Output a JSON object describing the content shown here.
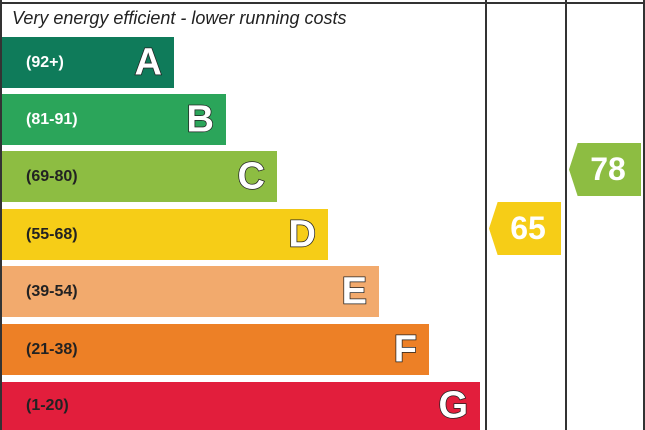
{
  "chart_data": {
    "type": "table",
    "title": "Very energy efficient - lower running costs",
    "bands": [
      {
        "letter": "A",
        "range": "(92+)",
        "min": 92,
        "max": 100,
        "color": "#0f7b5a",
        "text_color": "#ffffff"
      },
      {
        "letter": "B",
        "range": "(81-91)",
        "min": 81,
        "max": 91,
        "color": "#2ba55a",
        "text_color": "#ffffff"
      },
      {
        "letter": "C",
        "range": "(69-80)",
        "min": 69,
        "max": 80,
        "color": "#8dbd42",
        "text_color": "#222222"
      },
      {
        "letter": "D",
        "range": "(55-68)",
        "min": 55,
        "max": 68,
        "color": "#f6cd17",
        "text_color": "#222222"
      },
      {
        "letter": "E",
        "range": "(39-54)",
        "min": 39,
        "max": 54,
        "color": "#f2aa6d",
        "text_color": "#222222"
      },
      {
        "letter": "F",
        "range": "(21-38)",
        "min": 21,
        "max": 38,
        "color": "#ed8026",
        "text_color": "#222222"
      },
      {
        "letter": "G",
        "range": "(1-20)",
        "min": 1,
        "max": 20,
        "color": "#e21e3c",
        "text_color": "#222222"
      }
    ],
    "ratings": [
      {
        "name": "current",
        "value": "65",
        "band": "D",
        "color": "#f6cd17"
      },
      {
        "name": "potential",
        "value": "78",
        "band": "C",
        "color": "#8dbd42"
      }
    ]
  }
}
